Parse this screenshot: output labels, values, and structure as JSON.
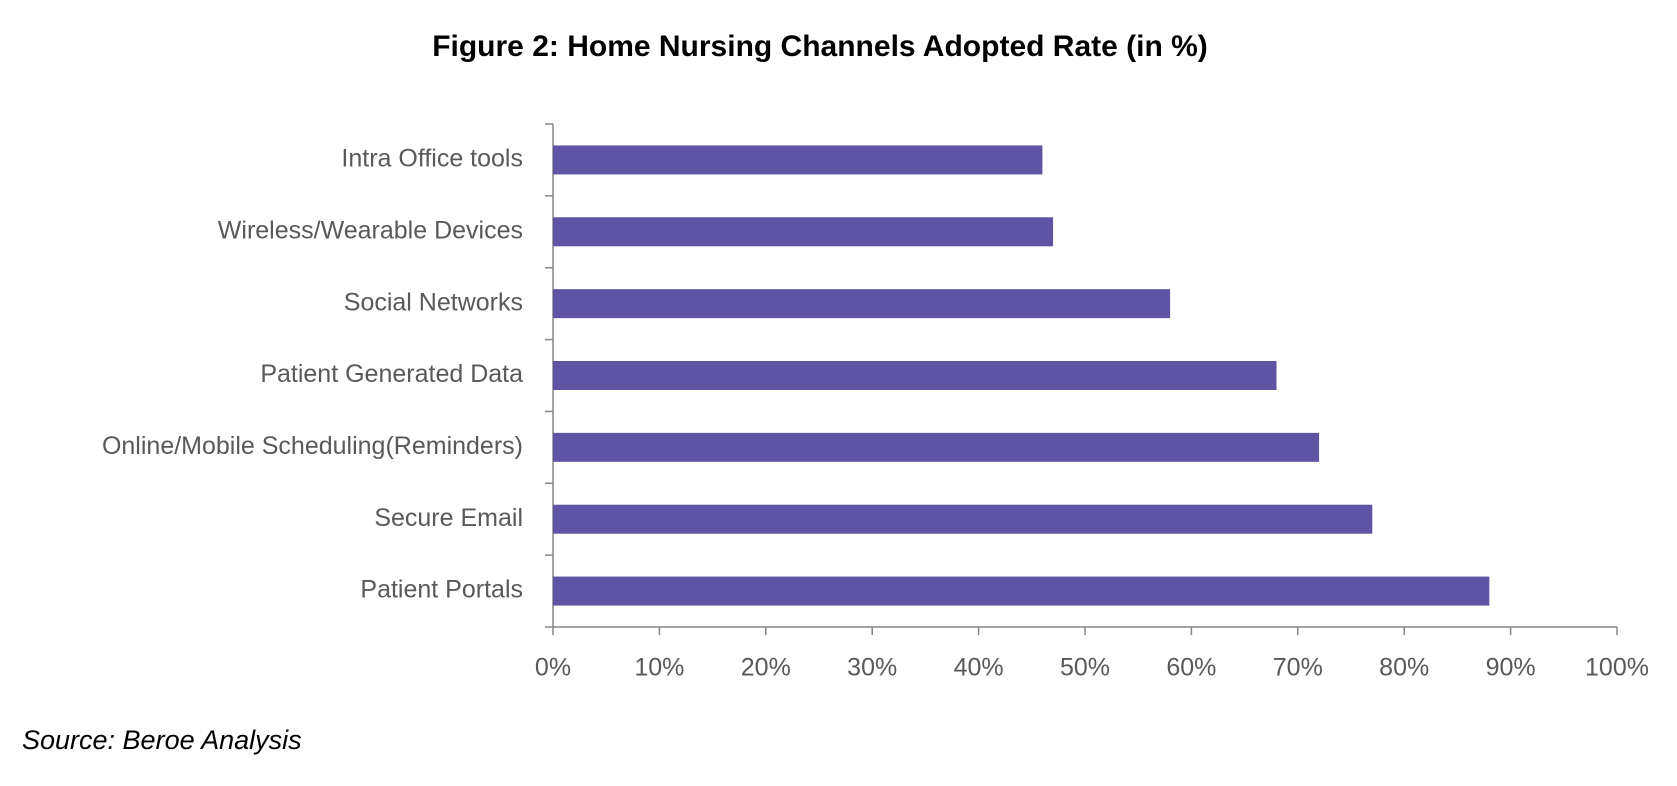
{
  "chart_data": {
    "type": "bar",
    "orientation": "horizontal",
    "title": "Figure 2: Home Nursing Channels Adopted Rate (in %)",
    "categories": [
      "Intra Office tools",
      "Wireless/Wearable Devices",
      "Social Networks",
      "Patient Generated Data",
      "Online/Mobile Scheduling(Reminders)",
      "Secure Email",
      "Patient Portals"
    ],
    "values": [
      46,
      47,
      58,
      68,
      72,
      77,
      88
    ],
    "color": "#5f54a3",
    "xlim": [
      0,
      100
    ],
    "xticks": [
      {
        "value": 0,
        "label": "0%"
      },
      {
        "value": 10,
        "label": "10%"
      },
      {
        "value": 20,
        "label": "20%"
      },
      {
        "value": 30,
        "label": "30%"
      },
      {
        "value": 40,
        "label": "40%"
      },
      {
        "value": 50,
        "label": "50%"
      },
      {
        "value": 60,
        "label": "60%"
      },
      {
        "value": 70,
        "label": "70%"
      },
      {
        "value": 80,
        "label": "80%"
      },
      {
        "value": 90,
        "label": "90%"
      },
      {
        "value": 100,
        "label": "100%"
      }
    ],
    "grid": false,
    "source": "Source: Beroe Analysis"
  }
}
